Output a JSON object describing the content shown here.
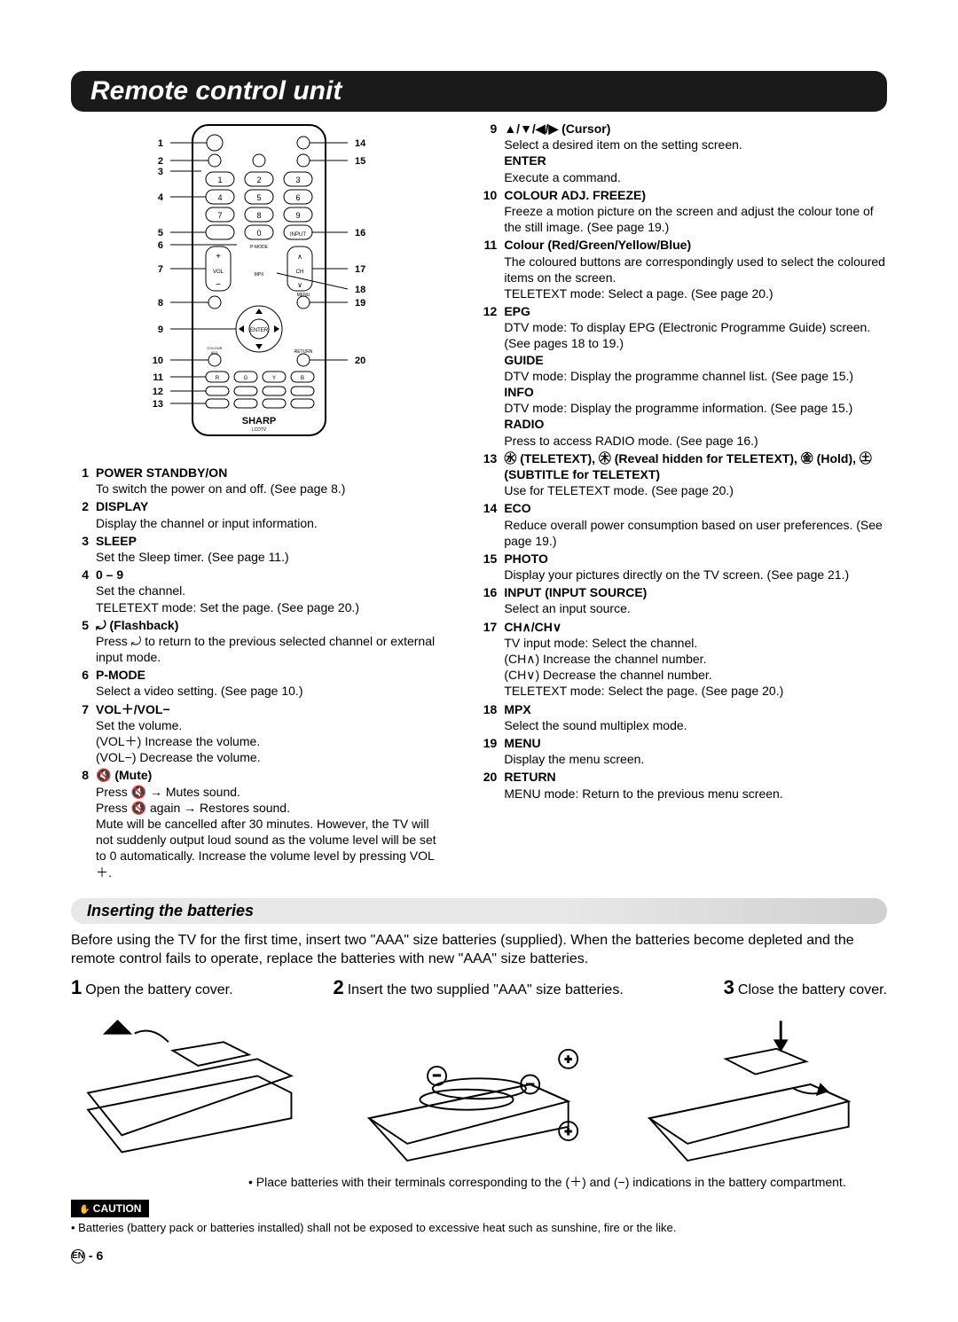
{
  "title": "Remote control unit",
  "left_items": [
    {
      "n": "1",
      "hd": "POWER STANDBY/ON",
      "desc": "To switch the power on and off. (See page 8.)"
    },
    {
      "n": "2",
      "hd": "DISPLAY",
      "desc": "Display the channel or input information."
    },
    {
      "n": "3",
      "hd": "SLEEP",
      "desc": "Set the Sleep timer. (See page 11.)"
    },
    {
      "n": "4",
      "hd": "0 – 9",
      "desc": "Set the channel.\nTELETEXT mode: Set the page. (See page 20.)"
    },
    {
      "n": "5",
      "hd": "⤾ (Flashback)",
      "desc": "Press ⤾ to return to the previous selected channel or external input mode."
    },
    {
      "n": "6",
      "hd": "P-MODE",
      "desc": "Select a video setting. (See page 10.)"
    },
    {
      "n": "7",
      "hd": "VOL＋/VOL−",
      "desc": "Set the volume.\n(VOL＋) Increase the volume.\n(VOL−) Decrease the volume."
    },
    {
      "n": "8",
      "hd": "🔇 (Mute)",
      "desc": "Press 🔇 → Mutes sound.\nPress 🔇 again → Restores sound.\nMute will be cancelled after 30 minutes. However, the TV will not suddenly output loud sound as the volume level will be set to 0 automatically. Increase the volume level by pressing VOL ＋."
    }
  ],
  "right_items": [
    {
      "n": "9",
      "hd": "▲/▼/◀/▶ (Cursor)",
      "desc": "Select a desired item on the setting screen.",
      "extra": [
        {
          "h": "ENTER",
          "d": "Execute a command."
        }
      ]
    },
    {
      "n": "10",
      "hd": "COLOUR ADJ. FREEZE)",
      "desc": "Freeze a motion picture on the screen and adjust the colour tone of the still image. (See page 19.)"
    },
    {
      "n": "11",
      "hd": "Colour (Red/Green/Yellow/Blue)",
      "desc": "The coloured buttons are correspondingly used to select the coloured items on the screen.\nTELETEXT mode: Select a page. (See page 20.)"
    },
    {
      "n": "12",
      "hd": "EPG",
      "desc": "DTV mode: To display EPG (Electronic Programme Guide) screen. (See pages 18 to 19.)",
      "extra": [
        {
          "h": "GUIDE",
          "d": "DTV mode: Display the programme channel list. (See page 15.)"
        },
        {
          "h": "INFO",
          "d": "DTV mode: Display the programme information. (See page 15.)"
        },
        {
          "h": "RADIO",
          "d": "Press to access RADIO mode. (See page 16.)"
        }
      ]
    },
    {
      "n": "13",
      "hd": "㊌ (TELETEXT), ㊍ (Reveal hidden for TELETEXT), ㊎ (Hold), ㊏ (SUBTITLE for TELETEXT)",
      "desc": "Use for TELETEXT mode. (See page 20.)"
    },
    {
      "n": "14",
      "hd": "ECO",
      "desc": "Reduce overall power consumption based on user preferences. (See page 19.)"
    },
    {
      "n": "15",
      "hd": "PHOTO",
      "desc": "Display your pictures directly on the TV screen. (See page 21.)"
    },
    {
      "n": "16",
      "hd": "INPUT (INPUT SOURCE)",
      "desc": "Select an input source."
    },
    {
      "n": "17",
      "hd": "CH∧/CH∨",
      "desc": "TV input mode: Select the channel.\n(CH∧) Increase the channel number.\n(CH∨) Decrease the channel number.\nTELETEXT mode: Select the page. (See page 20.)"
    },
    {
      "n": "18",
      "hd": "MPX",
      "desc": "Select the sound multiplex mode."
    },
    {
      "n": "19",
      "hd": "MENU",
      "desc": "Display the menu screen."
    },
    {
      "n": "20",
      "hd": "RETURN",
      "desc": "MENU mode: Return to the previous menu screen."
    }
  ],
  "sub_heading": "Inserting the batteries",
  "batt_intro": "Before using the TV for the first time, insert two \"AAA\" size batteries (supplied). When the batteries become depleted and the remote control fails to operate, replace the batteries with new \"AAA\" size batteries.",
  "steps": [
    {
      "n": "1",
      "t": "Open the battery cover."
    },
    {
      "n": "2",
      "t": "Insert the two supplied \"AAA\" size batteries."
    },
    {
      "n": "3",
      "t": "Close the battery cover."
    }
  ],
  "note": "• Place batteries with their terminals corresponding to the (＋) and (−) indications in the battery compartment.",
  "caution_label": "CAUTION",
  "caution_text": "• Batteries (battery pack or batteries installed) shall not be exposed to excessive heat such as sunshine, fire or the like.",
  "page_foot_left": "EN",
  "page_foot_num": "6",
  "remote_callouts_left": [
    "1",
    "2",
    "3",
    "4",
    "5",
    "6",
    "7",
    "8",
    "9",
    "10",
    "11",
    "12",
    "13"
  ],
  "remote_callouts_right": [
    "14",
    "15",
    "16",
    "17",
    "18",
    "19",
    "20"
  ],
  "brand": "SHARP",
  "brand_sub": "LCDTV"
}
